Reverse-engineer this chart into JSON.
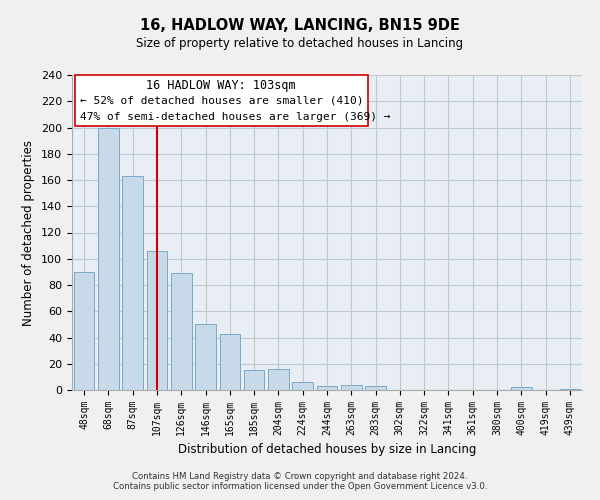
{
  "title": "16, HADLOW WAY, LANCING, BN15 9DE",
  "subtitle": "Size of property relative to detached houses in Lancing",
  "xlabel": "Distribution of detached houses by size in Lancing",
  "ylabel": "Number of detached properties",
  "bar_labels": [
    "48sqm",
    "68sqm",
    "87sqm",
    "107sqm",
    "126sqm",
    "146sqm",
    "165sqm",
    "185sqm",
    "204sqm",
    "224sqm",
    "244sqm",
    "263sqm",
    "283sqm",
    "302sqm",
    "322sqm",
    "341sqm",
    "361sqm",
    "380sqm",
    "400sqm",
    "419sqm",
    "439sqm"
  ],
  "bar_values": [
    90,
    200,
    163,
    106,
    89,
    50,
    43,
    15,
    16,
    6,
    3,
    4,
    3,
    0,
    0,
    0,
    0,
    0,
    2,
    0,
    1
  ],
  "bar_color": "#c8daea",
  "bar_edge_color": "#7aaac8",
  "ylim": [
    0,
    240
  ],
  "yticks": [
    0,
    20,
    40,
    60,
    80,
    100,
    120,
    140,
    160,
    180,
    200,
    220,
    240
  ],
  "vline_x": 3,
  "vline_color": "#cc0000",
  "annotation_title": "16 HADLOW WAY: 103sqm",
  "annotation_line1": "← 52% of detached houses are smaller (410)",
  "annotation_line2": "47% of semi-detached houses are larger (369) →",
  "footer1": "Contains HM Land Registry data © Crown copyright and database right 2024.",
  "footer2": "Contains public sector information licensed under the Open Government Licence v3.0.",
  "background_color": "#f0f0f0",
  "plot_background_color": "#e8eef4",
  "grid_color": "#c0c8d0"
}
